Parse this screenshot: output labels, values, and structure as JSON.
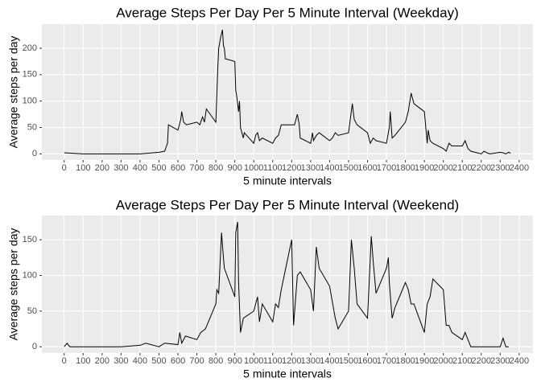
{
  "chart_data": [
    {
      "type": "line",
      "title": "Average Steps Per Day Per 5 Minute Interval (Weekday)",
      "x_label": "5 minute intervals",
      "y_label": "Average steps per day",
      "x": [
        0,
        100,
        200,
        300,
        400,
        500,
        530,
        545,
        550,
        600,
        615,
        620,
        630,
        645,
        700,
        715,
        730,
        740,
        750,
        800,
        810,
        815,
        825,
        835,
        840,
        845,
        850,
        900,
        905,
        910,
        915,
        920,
        925,
        930,
        945,
        950,
        1000,
        1010,
        1020,
        1030,
        1045,
        1100,
        1115,
        1130,
        1145,
        1200,
        1215,
        1230,
        1240,
        1245,
        1300,
        1310,
        1315,
        1330,
        1345,
        1400,
        1415,
        1430,
        1445,
        1500,
        1520,
        1530,
        1545,
        1600,
        1615,
        1630,
        1645,
        1700,
        1715,
        1720,
        1730,
        1745,
        1800,
        1815,
        1830,
        1845,
        1900,
        1910,
        1915,
        1920,
        1930,
        1945,
        2000,
        2015,
        2030,
        2045,
        2100,
        2115,
        2130,
        2145,
        2200,
        2215,
        2230,
        2245,
        2300,
        2315,
        2330,
        2345,
        2355
      ],
      "series": [
        {
          "color": "#000000",
          "values": [
            2,
            0,
            0,
            0,
            0,
            3,
            5,
            20,
            55,
            45,
            65,
            80,
            60,
            55,
            60,
            55,
            70,
            60,
            85,
            60,
            160,
            200,
            220,
            235,
            205,
            200,
            180,
            175,
            120,
            110,
            95,
            80,
            100,
            50,
            30,
            40,
            20,
            35,
            40,
            25,
            30,
            20,
            30,
            35,
            55,
            55,
            55,
            75,
            55,
            30,
            20,
            40,
            25,
            35,
            40,
            25,
            30,
            40,
            35,
            40,
            95,
            65,
            55,
            40,
            20,
            30,
            25,
            20,
            50,
            80,
            30,
            35,
            60,
            80,
            115,
            95,
            80,
            40,
            20,
            45,
            25,
            20,
            10,
            5,
            20,
            15,
            15,
            25,
            10,
            5,
            0,
            5,
            2,
            0,
            3,
            2,
            0,
            3,
            1
          ]
        }
      ],
      "xlim": [
        -117.75,
        2472.75
      ],
      "ylim": [
        -11.7,
        245.7
      ],
      "xticks": [
        0,
        100,
        200,
        300,
        400,
        500,
        600,
        700,
        800,
        900,
        1000,
        1100,
        1200,
        1300,
        1400,
        1500,
        1600,
        1700,
        1800,
        1900,
        2000,
        2100,
        2200,
        2300,
        2400
      ],
      "yticks": [
        0,
        50,
        100,
        150,
        200
      ],
      "grid": true
    },
    {
      "type": "line",
      "title": "Average Steps Per Day Per 5 Minute Interval (Weekend)",
      "x_label": "5 minute intervals",
      "y_label": "Average steps per day",
      "x": [
        0,
        15,
        30,
        100,
        200,
        300,
        400,
        430,
        500,
        530,
        600,
        610,
        620,
        640,
        700,
        720,
        745,
        800,
        805,
        815,
        830,
        840,
        845,
        900,
        905,
        915,
        920,
        930,
        945,
        1000,
        1020,
        1030,
        1045,
        1100,
        1115,
        1130,
        1145,
        1200,
        1210,
        1230,
        1245,
        1300,
        1315,
        1330,
        1345,
        1400,
        1420,
        1430,
        1445,
        1500,
        1515,
        1530,
        1545,
        1600,
        1620,
        1630,
        1645,
        1700,
        1710,
        1715,
        1730,
        1745,
        1800,
        1815,
        1830,
        1845,
        1900,
        1915,
        1930,
        1945,
        2000,
        2015,
        2030,
        2045,
        2100,
        2115,
        2130,
        2145,
        2200,
        2230,
        2300,
        2315,
        2330,
        2345
      ],
      "series": [
        {
          "color": "#000000",
          "values": [
            0,
            5,
            0,
            0,
            0,
            0,
            2,
            5,
            0,
            5,
            3,
            20,
            5,
            15,
            10,
            20,
            25,
            60,
            80,
            75,
            160,
            125,
            110,
            70,
            160,
            175,
            90,
            20,
            40,
            50,
            70,
            35,
            60,
            35,
            60,
            55,
            80,
            150,
            30,
            100,
            105,
            80,
            50,
            140,
            110,
            85,
            55,
            40,
            25,
            50,
            150,
            110,
            60,
            40,
            155,
            120,
            75,
            110,
            125,
            90,
            40,
            55,
            90,
            80,
            60,
            60,
            20,
            60,
            70,
            95,
            80,
            30,
            30,
            20,
            10,
            20,
            10,
            0,
            0,
            0,
            0,
            12,
            0,
            0
          ]
        }
      ],
      "xlim": [
        -117.75,
        2472.75
      ],
      "ylim": [
        -8.8,
        184
      ],
      "xticks": [
        0,
        100,
        200,
        300,
        400,
        500,
        600,
        700,
        800,
        900,
        1000,
        1100,
        1200,
        1300,
        1400,
        1500,
        1600,
        1700,
        1800,
        1900,
        2000,
        2100,
        2200,
        2300,
        2400
      ],
      "yticks": [
        0,
        50,
        100,
        150
      ],
      "grid": true
    }
  ]
}
